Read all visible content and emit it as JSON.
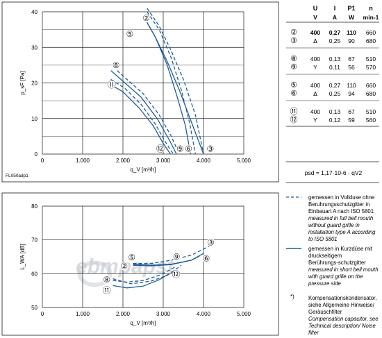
{
  "chart_data": [
    {
      "type": "line",
      "title": "",
      "xlabel": "q_V [m³/h]",
      "ylabel": "p_sF [Pa]",
      "xlim": [
        0,
        5000
      ],
      "ylim": [
        0,
        40
      ],
      "x_ticks": [
        0,
        1000,
        2000,
        3000,
        4000,
        5000
      ],
      "x_tick_labels": [
        "0",
        "1.000",
        "2.000",
        "3.000",
        "4.000",
        "5.000"
      ],
      "y_ticks": [
        0,
        10,
        20,
        30,
        40
      ],
      "y_tick_labels": [
        "0",
        "10",
        "20",
        "30",
        "40"
      ],
      "grid": true,
      "footnote": "FL050adp1",
      "series": [
        {
          "name": "②",
          "style": "solid",
          "x": [
            2550,
            2800,
            3100,
            3400,
            3700,
            3900,
            4000
          ],
          "y": [
            38,
            33,
            26,
            18,
            9,
            3,
            0
          ]
        },
        {
          "name": "③",
          "style": "dashed",
          "x": [
            2600,
            2900,
            3200,
            3500,
            3800,
            4000
          ],
          "y": [
            41,
            36,
            29,
            21,
            11,
            0
          ]
        },
        {
          "name": "⑤",
          "style": "solid",
          "x": [
            2550,
            2800,
            3100,
            3350,
            3550,
            3680
          ],
          "y": [
            38,
            33,
            25,
            16,
            8,
            0
          ]
        },
        {
          "name": "⑥",
          "style": "dashed",
          "x": [
            2600,
            2900,
            3200,
            3450,
            3650,
            3800
          ],
          "y": [
            40,
            35,
            27,
            18,
            9,
            0
          ]
        },
        {
          "name": "⑧",
          "style": "dashed",
          "x": [
            1750,
            2100,
            2500,
            2900,
            3200,
            3400
          ],
          "y": [
            24.5,
            21,
            17,
            11,
            5,
            0
          ]
        },
        {
          "name": "⑨",
          "style": "solid",
          "x": [
            1700,
            2050,
            2450,
            2850,
            3150,
            3330
          ],
          "y": [
            23.5,
            20,
            16,
            10,
            4,
            0
          ]
        },
        {
          "name": "⑪",
          "style": "solid",
          "x": [
            1700,
            2000,
            2400,
            2750,
            3000,
            3180
          ],
          "y": [
            19.5,
            17.5,
            13,
            8,
            3,
            0
          ]
        },
        {
          "name": "⑫",
          "style": "dashed",
          "x": [
            1700,
            2050,
            2450,
            2800,
            3050,
            3250
          ],
          "y": [
            21,
            18.5,
            14,
            8.5,
            3.5,
            0
          ]
        }
      ],
      "curve_labels": [
        {
          "text": "②",
          "x": 2580,
          "y": 38.2
        },
        {
          "text": "⑤",
          "x": 2170,
          "y": 33.8
        },
        {
          "text": "⑧",
          "x": 1830,
          "y": 25
        },
        {
          "text": "⑪",
          "x": 1720,
          "y": 19.5
        },
        {
          "text": "⑫",
          "x": 2930,
          "y": 1.5
        },
        {
          "text": "⑨",
          "x": 3420,
          "y": 1.5
        },
        {
          "text": "⑥",
          "x": 3630,
          "y": 1.5
        },
        {
          "text": "③",
          "x": 4170,
          "y": 1.5
        }
      ]
    },
    {
      "type": "line",
      "title": "",
      "xlabel": "q_V [m³/h]",
      "ylabel": "L_WA [dB]",
      "xlim": [
        0,
        5000
      ],
      "ylim": [
        50,
        80
      ],
      "x_ticks": [
        0,
        1000,
        2000,
        3000,
        4000,
        5000
      ],
      "x_tick_labels": [
        "0",
        "1.000",
        "2.000",
        "3.000",
        "4.000",
        "5.000"
      ],
      "y_ticks": [
        50,
        60,
        70,
        80
      ],
      "y_tick_labels": [
        "50",
        "60",
        "70",
        "80"
      ],
      "grid": true,
      "watermark": "ebmpapst",
      "series": [
        {
          "name": "③",
          "style": "dashed",
          "x": [
            2250,
            2700,
            3200,
            3700,
            4200
          ],
          "y": [
            63,
            63,
            64,
            65.5,
            68.5
          ]
        },
        {
          "name": "⑥",
          "style": "solid",
          "x": [
            2250,
            2700,
            3200,
            3700,
            4000
          ],
          "y": [
            62.5,
            62.3,
            62.7,
            64,
            66
          ]
        },
        {
          "name": "⑤",
          "style": "solid",
          "x": [
            2250,
            2700,
            3200,
            3700,
            3900
          ],
          "y": [
            62.8,
            62.5,
            62.8,
            64,
            65.2
          ]
        },
        {
          "name": "⑧",
          "style": "dashed",
          "x": [
            1750,
            2100,
            2500,
            2900,
            3300
          ],
          "y": [
            58,
            57.5,
            58,
            59.5,
            62
          ]
        },
        {
          "name": "⑪",
          "style": "solid",
          "x": [
            1750,
            2100,
            2500,
            2900,
            3150
          ],
          "y": [
            56.5,
            55.8,
            56.3,
            58.2,
            60
          ]
        },
        {
          "name": "⑨",
          "style": "dashed",
          "x": [
            1750,
            2200,
            2700,
            3100,
            3450
          ],
          "y": [
            58.5,
            57,
            57.8,
            59.5,
            62.5
          ]
        }
      ],
      "curve_labels": [
        {
          "text": "③",
          "x": 4180,
          "y": 69.2
        },
        {
          "text": "⑨",
          "x": 3330,
          "y": 65
        },
        {
          "text": "⑥",
          "x": 4070,
          "y": 64.5
        },
        {
          "text": "⑤",
          "x": 2220,
          "y": 64.8
        },
        {
          "text": "②",
          "x": 2030,
          "y": 62.2
        },
        {
          "text": "⑫",
          "x": 3320,
          "y": 59.8
        },
        {
          "text": "⑧",
          "x": 1600,
          "y": 58.2
        },
        {
          "text": "⑪",
          "x": 1600,
          "y": 55
        }
      ]
    }
  ],
  "table": {
    "headers": [
      "U",
      "I",
      "P1",
      "n"
    ],
    "units": [
      "V",
      "A",
      "W",
      "min-1"
    ],
    "groups": [
      [
        {
          "curve": "②",
          "u": "400",
          "i": "0,27",
          "p": "110",
          "n": "660",
          "bold": true
        },
        {
          "curve": "③",
          "u": "Δ",
          "i": "0,25",
          "p": "90",
          "n": "680",
          "bold": false
        }
      ],
      [
        {
          "curve": "⑧",
          "u": "400",
          "i": "0,13",
          "p": "67",
          "n": "510",
          "bold": false
        },
        {
          "curve": "⑨",
          "u": "Y",
          "i": "0,11",
          "p": "56",
          "n": "570",
          "bold": false
        }
      ],
      [
        {
          "curve": "⑤",
          "u": "400",
          "i": "0,27",
          "p": "110",
          "n": "660",
          "bold": false
        },
        {
          "curve": "⑥",
          "u": "Δ",
          "i": "0,25",
          "p": "94",
          "n": "680",
          "bold": false
        }
      ],
      [
        {
          "curve": "⑪",
          "u": "400",
          "i": "0,13",
          "p": "67",
          "n": "510",
          "bold": false
        },
        {
          "curve": "⑫",
          "u": "Y",
          "i": "0,12",
          "p": "59",
          "n": "560",
          "bold": false
        }
      ]
    ],
    "formula": "psd = 1,17·10-6 · qV2"
  },
  "legend": {
    "dashed": {
      "de": "gemessen in Vollduse ohne Beruhrungsschutzgitter in Einbauart A nach ISO 5801",
      "en": "measured in full bell mouth without guard grille in installation type A according to ISO 5801"
    },
    "solid": {
      "de": "gemessen in Kurzdüse mit druckseitigem Berührungs-schutzgitter",
      "en": "measured in short bell mouth with guard grille on the pressure side"
    },
    "note": {
      "marker": "*)",
      "de": "Kompensationskondensator, siehe Allgemeine Hinweise/ Geräuschfilter",
      "en": "Compensation capacitor, see Technical description/ Noise filter"
    }
  },
  "colors": {
    "curve": "#1f5d99",
    "grid": "#1a1a1a",
    "text": "#1a1a1a",
    "watermark": "#c7ccd4"
  }
}
